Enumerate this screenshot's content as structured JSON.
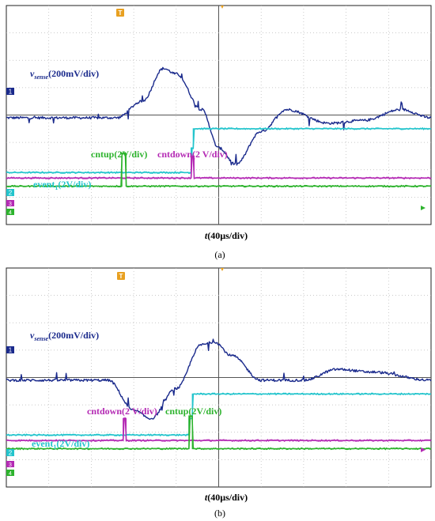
{
  "panels": [
    {
      "caption": "(a)",
      "x_axis_label": "t(40µs/div)",
      "x_axis_var": "t",
      "x_axis_unit": "(40µs/div)",
      "ch1": {
        "var": "v",
        "sub": "sense",
        "unit": "(200mV/div)",
        "marker": "1"
      },
      "event1": {
        "var": "event",
        "sub": "1",
        "unit": "(2V/div)",
        "marker": "2"
      },
      "cntup": {
        "label": "cntup(2V/div)"
      },
      "cntdown": {
        "label": "cntdown(2 V/div)"
      },
      "ch3_marker": "3",
      "ch4_marker": "4",
      "trigger_marker": "T"
    },
    {
      "caption": "(b)",
      "x_axis_label": "t(40µs/div)",
      "x_axis_var": "t",
      "x_axis_unit": "(40µs/div)",
      "ch1": {
        "var": "v",
        "sub": "sense",
        "unit": "(200mV/div)",
        "marker": "1"
      },
      "event1": {
        "var": "event",
        "sub": "1",
        "unit": "(2V/div)",
        "marker": "2"
      },
      "cntup": {
        "label": "cntup(2V/div)"
      },
      "cntdown": {
        "label": "cntdown(2 V/div)"
      },
      "ch3_marker": "3",
      "ch4_marker": "4",
      "trigger_marker": "T"
    }
  ],
  "colors": {
    "ch1": "#1a2a8c",
    "event1": "#22c4cc",
    "cntup": "#2db32d",
    "cntdown": "#b42ab4",
    "grid": "#b8b8b8",
    "trigger": "#e8a020"
  },
  "chart_data": [
    {
      "type": "line",
      "x_unit": "div",
      "xlim": [
        0,
        10
      ],
      "ylim": [
        -4,
        4
      ],
      "grid": true,
      "series": [
        {
          "name": "vsense",
          "x": [
            0,
            2.6,
            3.2,
            3.7,
            4.0,
            4.6,
            5.0,
            5.4,
            6.0,
            6.6,
            7.6,
            8.4,
            9.3,
            10.0
          ],
          "y": [
            -0.1,
            -0.1,
            0.5,
            1.7,
            1.5,
            0.2,
            -1.2,
            -1.8,
            -0.6,
            0.2,
            -0.3,
            -0.2,
            0.2,
            -0.1
          ]
        },
        {
          "name": "event1",
          "x": [
            0,
            4.35,
            4.35,
            4.4,
            4.4,
            10.0
          ],
          "y": [
            -2.1,
            -2.1,
            -1.2,
            -1.2,
            -0.5,
            -0.5
          ]
        },
        {
          "name": "cntdown",
          "x": [
            0,
            4.35,
            4.35,
            4.42,
            4.42,
            10.0
          ],
          "y": [
            -2.3,
            -2.3,
            -1.5,
            -1.5,
            -2.3,
            -2.3
          ]
        },
        {
          "name": "cntup",
          "x": [
            0,
            2.72,
            2.72,
            2.82,
            2.82,
            10.0
          ],
          "y": [
            -2.6,
            -2.6,
            -1.4,
            -1.4,
            -2.6,
            -2.6
          ]
        }
      ]
    },
    {
      "type": "line",
      "x_unit": "div",
      "xlim": [
        0,
        10
      ],
      "ylim": [
        -4,
        4
      ],
      "grid": true,
      "series": [
        {
          "name": "vsense",
          "x": [
            0,
            2.4,
            3.0,
            3.4,
            4.0,
            4.6,
            4.9,
            5.3,
            6.0,
            7.0,
            7.8,
            8.6,
            10.0
          ],
          "y": [
            -0.1,
            -0.1,
            -1.2,
            -1.5,
            -0.4,
            1.2,
            1.3,
            0.8,
            -0.1,
            -0.1,
            0.3,
            0.2,
            -0.1
          ]
        },
        {
          "name": "event1",
          "x": [
            0,
            4.3,
            4.3,
            4.38,
            4.38,
            10.0
          ],
          "y": [
            -2.1,
            -2.1,
            -1.5,
            -1.5,
            -0.6,
            -0.6
          ]
        },
        {
          "name": "cntdown",
          "x": [
            0,
            2.75,
            2.75,
            2.82,
            2.82,
            10.0
          ],
          "y": [
            -2.3,
            -2.3,
            -1.5,
            -1.5,
            -2.3,
            -2.3
          ]
        },
        {
          "name": "cntup",
          "x": [
            0,
            4.3,
            4.3,
            4.38,
            4.38,
            10.0
          ],
          "y": [
            -2.6,
            -2.6,
            -1.4,
            -1.4,
            -2.6,
            -2.6
          ]
        }
      ]
    }
  ]
}
